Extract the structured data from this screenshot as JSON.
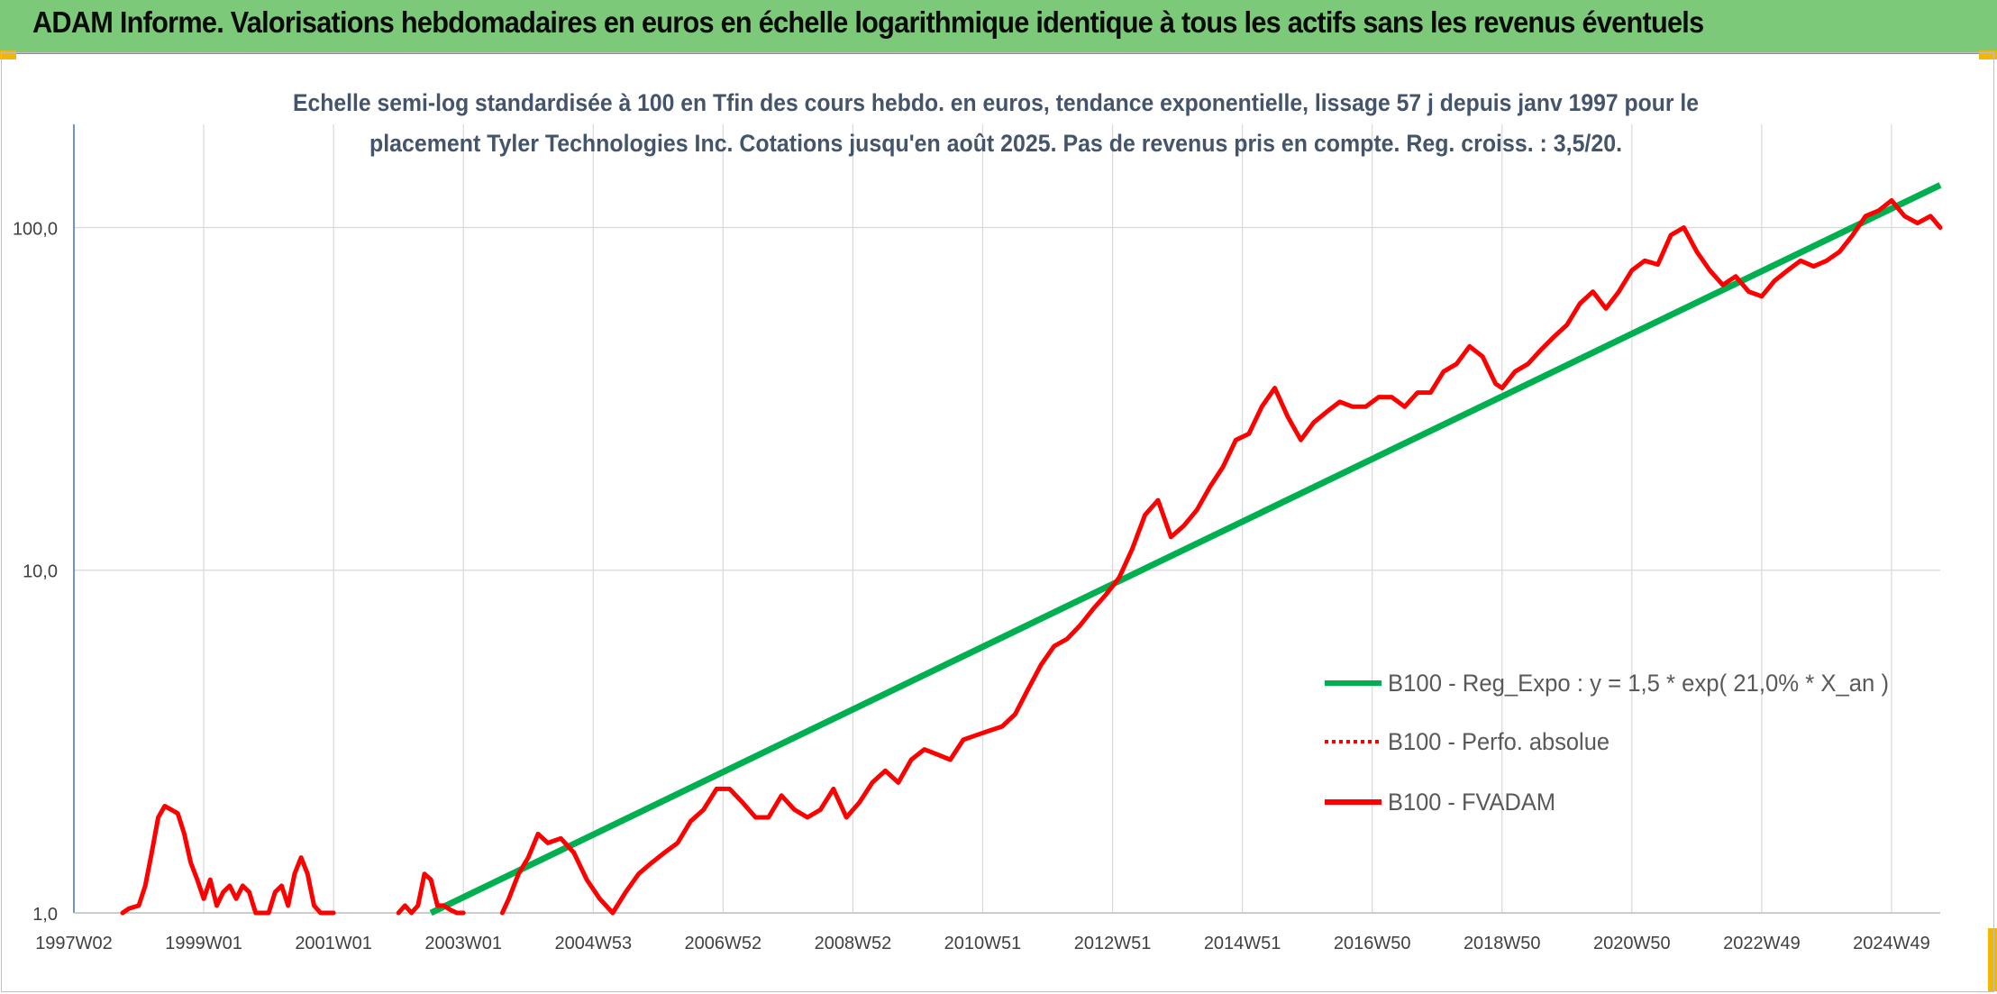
{
  "header": {
    "title": "ADAM Informe. Valorisations hebdomadaires en euros en échelle logarithmique identique à tous les actifs sans les revenus éventuels"
  },
  "colors": {
    "header_bg": "#7dc97a",
    "regression": "#00b050",
    "series": "#ff0000",
    "corner": "#f2b705"
  },
  "chart_data": {
    "type": "line",
    "title_line1": "Echelle semi-log standardisée à 100 en Tfin des cours hebdo. en euros, tendance exponentielle, lissage 57 j depuis janv 1997 pour le",
    "title_line2": "placement Tyler Technologies Inc. Cotations jusqu'en août 2025. Pas de revenus pris en compte. Reg. croiss. : 3,5/20.",
    "y_scale": "log",
    "ylim": [
      1,
      200
    ],
    "xlim": [
      1997.0,
      2025.75
    ],
    "y_ticks": [
      {
        "value": 1,
        "label": "1,0"
      },
      {
        "value": 10,
        "label": "10,0"
      },
      {
        "value": 100,
        "label": "100,0"
      }
    ],
    "x_ticks": [
      {
        "value": 1997.0,
        "label": "1997W02"
      },
      {
        "value": 1999.0,
        "label": "1999W01"
      },
      {
        "value": 2001.0,
        "label": "2001W01"
      },
      {
        "value": 2003.0,
        "label": "2003W01"
      },
      {
        "value": 2005.0,
        "label": "2004W53"
      },
      {
        "value": 2007.0,
        "label": "2006W52"
      },
      {
        "value": 2009.0,
        "label": "2008W52"
      },
      {
        "value": 2011.0,
        "label": "2010W51"
      },
      {
        "value": 2013.0,
        "label": "2012W51"
      },
      {
        "value": 2015.0,
        "label": "2014W51"
      },
      {
        "value": 2017.0,
        "label": "2016W50"
      },
      {
        "value": 2019.0,
        "label": "2018W50"
      },
      {
        "value": 2021.0,
        "label": "2020W50"
      },
      {
        "value": 2023.0,
        "label": "2022W49"
      },
      {
        "value": 2025.0,
        "label": "2024W49"
      }
    ],
    "grid": "vertical and horizontal",
    "legend_position": "bottom-right",
    "series": [
      {
        "name": "B100 - Reg_Expo : y = 1,5 * exp( 21,0% *  X_an )",
        "style": "solid-green",
        "x": [
          2002.5,
          2025.75
        ],
        "y": [
          1.0,
          133
        ]
      },
      {
        "name": "B100 - Perfo. absolue",
        "style": "dotted-red",
        "x": [],
        "y": []
      },
      {
        "name": "B100 - FVADAM",
        "style": "solid-red",
        "segments": [
          {
            "x": [
              1997.75,
              1997.85,
              1998.0,
              1998.1,
              1998.2,
              1998.3,
              1998.4,
              1998.5,
              1998.6,
              1998.7,
              1998.8,
              1998.9,
              1999.0,
              1999.1,
              1999.2,
              1999.3,
              1999.4,
              1999.5,
              1999.6,
              1999.7,
              1999.8,
              1999.9,
              2000.0,
              2000.1,
              2000.2,
              2000.3,
              2000.4,
              2000.5,
              2000.6,
              2000.7,
              2000.8,
              2000.9,
              2001.0
            ],
            "y": [
              1.0,
              1.03,
              1.05,
              1.2,
              1.5,
              1.9,
              2.05,
              2.0,
              1.95,
              1.7,
              1.4,
              1.25,
              1.1,
              1.25,
              1.05,
              1.15,
              1.2,
              1.1,
              1.2,
              1.15,
              1.0,
              1.0,
              1.0,
              1.15,
              1.2,
              1.05,
              1.3,
              1.45,
              1.3,
              1.05,
              1.0,
              1.0,
              1.0
            ]
          },
          {
            "x": [
              2002.0,
              2002.1,
              2002.2,
              2002.3,
              2002.4,
              2002.5,
              2002.6,
              2002.7,
              2002.8,
              2002.9,
              2003.0
            ],
            "y": [
              1.0,
              1.05,
              1.0,
              1.05,
              1.3,
              1.25,
              1.05,
              1.05,
              1.02,
              1.0,
              1.0
            ]
          },
          {
            "x": [
              2003.6,
              2003.7,
              2003.85,
              2004.0,
              2004.15,
              2004.3,
              2004.5,
              2004.7,
              2004.9,
              2005.1,
              2005.3,
              2005.5,
              2005.7,
              2005.9,
              2006.1,
              2006.3,
              2006.5,
              2006.7,
              2006.9,
              2007.1,
              2007.3,
              2007.5,
              2007.7,
              2007.9,
              2008.1,
              2008.3,
              2008.5,
              2008.7,
              2008.9,
              2009.1,
              2009.3,
              2009.5,
              2009.7,
              2009.9,
              2010.1,
              2010.3,
              2010.5,
              2010.7,
              2010.9,
              2011.1,
              2011.3,
              2011.5,
              2011.7,
              2011.9,
              2012.1,
              2012.3,
              2012.5,
              2012.7,
              2012.9,
              2013.1,
              2013.3,
              2013.5,
              2013.7,
              2013.9,
              2014.1,
              2014.3,
              2014.5,
              2014.7,
              2014.9,
              2015.1,
              2015.3,
              2015.5,
              2015.7,
              2015.9,
              2016.1,
              2016.3,
              2016.5,
              2016.7,
              2016.9,
              2017.1,
              2017.3,
              2017.5,
              2017.7,
              2017.9,
              2018.1,
              2018.3,
              2018.5,
              2018.7,
              2018.9,
              2019.0,
              2019.2,
              2019.4,
              2019.6,
              2019.8,
              2020.0,
              2020.2,
              2020.4,
              2020.6,
              2020.8,
              2021.0,
              2021.2,
              2021.4,
              2021.6,
              2021.8,
              2022.0,
              2022.2,
              2022.4,
              2022.6,
              2022.8,
              2023.0,
              2023.2,
              2023.4,
              2023.6,
              2023.8,
              2024.0,
              2024.2,
              2024.4,
              2024.6,
              2024.8,
              2025.0,
              2025.2,
              2025.4,
              2025.6,
              2025.75
            ],
            "y": [
              1.0,
              1.1,
              1.3,
              1.45,
              1.7,
              1.6,
              1.65,
              1.5,
              1.25,
              1.1,
              1.0,
              1.15,
              1.3,
              1.4,
              1.5,
              1.6,
              1.85,
              2.0,
              2.3,
              2.3,
              2.1,
              1.9,
              1.9,
              2.2,
              2.0,
              1.9,
              2.0,
              2.3,
              1.9,
              2.1,
              2.4,
              2.6,
              2.4,
              2.8,
              3.0,
              2.9,
              2.8,
              3.2,
              3.3,
              3.4,
              3.5,
              3.8,
              4.5,
              5.3,
              6.0,
              6.3,
              6.9,
              7.7,
              8.5,
              9.5,
              11.5,
              14.5,
              16,
              12.5,
              13.5,
              15,
              17.5,
              20,
              24,
              25,
              30,
              34,
              28,
              24,
              27,
              29,
              31,
              30,
              30,
              32,
              32,
              30,
              33,
              33,
              38,
              40,
              45,
              42,
              35,
              34,
              38,
              40,
              44,
              48,
              52,
              60,
              65,
              58,
              65,
              75,
              80,
              78,
              95,
              100,
              85,
              75,
              68,
              72,
              65,
              63,
              70,
              75,
              80,
              77,
              80,
              85,
              95,
              108,
              112,
              120,
              108,
              103,
              108,
              100
            ]
          }
        ]
      }
    ]
  }
}
